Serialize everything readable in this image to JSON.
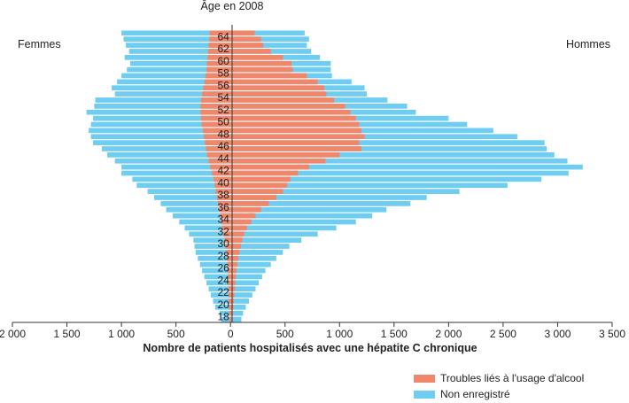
{
  "chart_data": {
    "type": "bar",
    "orientation": "horizontal-pyramid",
    "title": "Âge en 2008",
    "xlabel": "Nombre de patients hospitalisés avec une hépatite C chronique",
    "left_group_label": "Femmes",
    "right_group_label": "Hommes",
    "x_ticks": [
      -2000,
      -1500,
      -1000,
      -500,
      0,
      500,
      1000,
      1500,
      2000,
      2500,
      3000,
      3500
    ],
    "x_tick_labels": [
      "2 000",
      "1 500",
      "1 000",
      "500",
      "0",
      "500",
      "1 000",
      "1 500",
      "2 000",
      "2 500",
      "3 000",
      "3 500"
    ],
    "xlim": [
      -2000,
      3500
    ],
    "age_min": 17,
    "age_max": 65,
    "age_labels": [
      "64",
      "62",
      "60",
      "58",
      "56",
      "54",
      "52",
      "50",
      "48",
      "46",
      "44",
      "42",
      "40",
      "38",
      "36",
      "34",
      "32",
      "30",
      "28",
      "26",
      "24",
      "22",
      "20",
      "18"
    ],
    "series": [
      {
        "name": "Troubles liés à l'usage d'alcool",
        "color": "#f0876a",
        "women": [
          10,
          12,
          14,
          16,
          18,
          20,
          22,
          25,
          28,
          30,
          35,
          40,
          45,
          55,
          65,
          75,
          85,
          95,
          105,
          115,
          125,
          135,
          145,
          155,
          170,
          185,
          200,
          215,
          225,
          235,
          245,
          255,
          265,
          270,
          275,
          275,
          270,
          260,
          250,
          240,
          230,
          220,
          215,
          210,
          205,
          200,
          195,
          190
        ],
        "men": [
          18,
          22,
          26,
          30,
          35,
          40,
          45,
          50,
          55,
          62,
          72,
          82,
          95,
          110,
          125,
          150,
          190,
          230,
          280,
          350,
          420,
          480,
          520,
          550,
          620,
          720,
          870,
          1000,
          1200,
          1180,
          1230,
          1200,
          1180,
          1150,
          1100,
          1050,
          950,
          880,
          860,
          800,
          700,
          570,
          560,
          480,
          370,
          300,
          280,
          220
        ]
      },
      {
        "name": "Non enregistré",
        "color": "#6ecdf0",
        "women": [
          85,
          100,
          140,
          160,
          180,
          200,
          220,
          240,
          260,
          280,
          300,
          320,
          330,
          340,
          380,
          420,
          470,
          530,
          590,
          640,
          700,
          760,
          860,
          900,
          1000,
          1000,
          1060,
          1130,
          1180,
          1260,
          1280,
          1300,
          1280,
          1260,
          1320,
          1250,
          1240,
          1060,
          1090,
          1040,
          1000,
          950,
          920,
          970,
          930,
          960,
          980,
          1000
        ],
        "men": [
          100,
          115,
          140,
          170,
          200,
          230,
          260,
          290,
          320,
          370,
          420,
          480,
          540,
          650,
          800,
          970,
          1150,
          1300,
          1430,
          1650,
          1800,
          2100,
          2540,
          2850,
          3100,
          3230,
          3090,
          2970,
          2900,
          2880,
          2630,
          2410,
          2170,
          2000,
          1700,
          1620,
          1440,
          1250,
          1230,
          1110,
          930,
          920,
          920,
          820,
          740,
          700,
          720,
          680
        ]
      }
    ],
    "legend": [
      "Troubles liés à l'usage d'alcool",
      "Non enregistré"
    ]
  }
}
